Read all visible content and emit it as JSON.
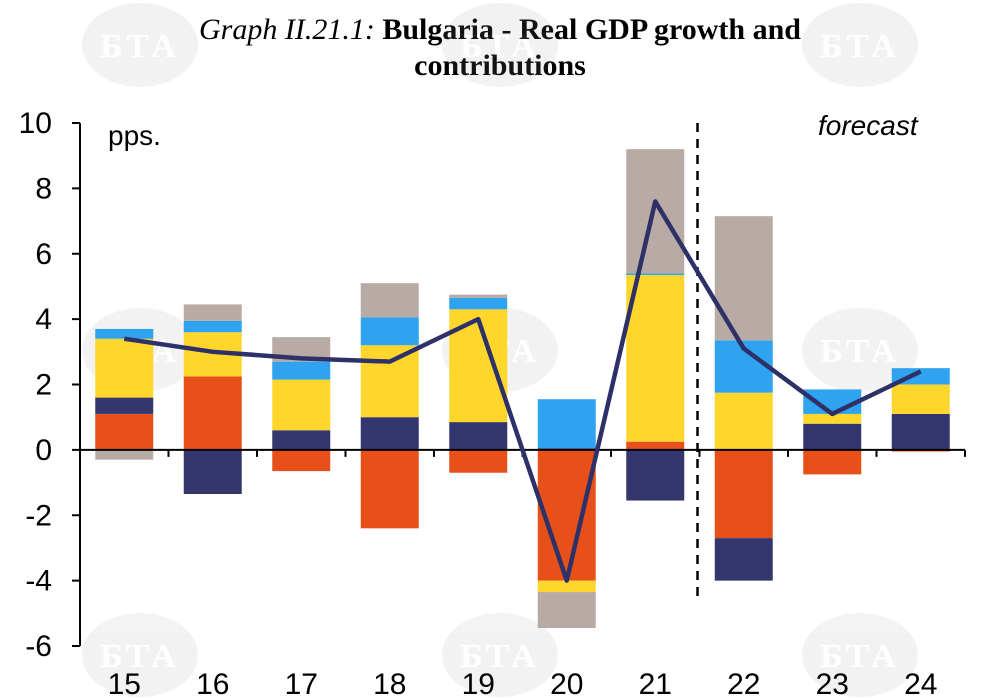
{
  "chart_data": {
    "type": "bar",
    "title_prefix": "Graph II.21.1:",
    "title_line1": "Bulgaria - Real GDP growth and",
    "title_line2": "contributions",
    "unit_label": "pps.",
    "forecast_label": "forecast",
    "watermark": "БТА",
    "categories": [
      "15",
      "16",
      "17",
      "18",
      "19",
      "20",
      "21",
      "22",
      "23",
      "24"
    ],
    "ylim": [
      -6,
      10
    ],
    "yticks": [
      "10",
      "8",
      "6",
      "4",
      "2",
      "0",
      "-2",
      "-4",
      "-6"
    ],
    "forecast_start_after": "21",
    "series": [
      {
        "name": "orange-red component",
        "color": "#E8501A",
        "values": [
          1.1,
          2.25,
          -0.65,
          -2.4,
          -0.7,
          -4.0,
          0.25,
          -2.7,
          -0.75,
          -0.05
        ]
      },
      {
        "name": "dark navy component",
        "color": "#33376E",
        "values": [
          0.5,
          -1.35,
          0.6,
          1.0,
          0.85,
          0.05,
          -1.55,
          -1.3,
          0.8,
          1.1
        ]
      },
      {
        "name": "yellow component",
        "color": "#FFD62C",
        "values": [
          1.8,
          1.35,
          1.55,
          2.2,
          3.45,
          -0.35,
          5.1,
          1.75,
          0.3,
          0.9
        ]
      },
      {
        "name": "light blue component",
        "color": "#2FA3F0",
        "values": [
          0.3,
          0.35,
          0.55,
          0.85,
          0.35,
          1.5,
          0.05,
          1.6,
          0.75,
          0.5
        ]
      },
      {
        "name": "grey component",
        "color": "#B8ABA5",
        "values": [
          -0.3,
          0.5,
          0.75,
          1.05,
          0.1,
          -1.1,
          3.8,
          3.8,
          0.0,
          0.0
        ]
      }
    ],
    "line": {
      "name": "Real GDP growth",
      "color": "#2E3168",
      "values": [
        3.4,
        3.0,
        2.8,
        2.7,
        4.0,
        -4.0,
        7.6,
        3.1,
        1.1,
        2.4
      ]
    }
  }
}
